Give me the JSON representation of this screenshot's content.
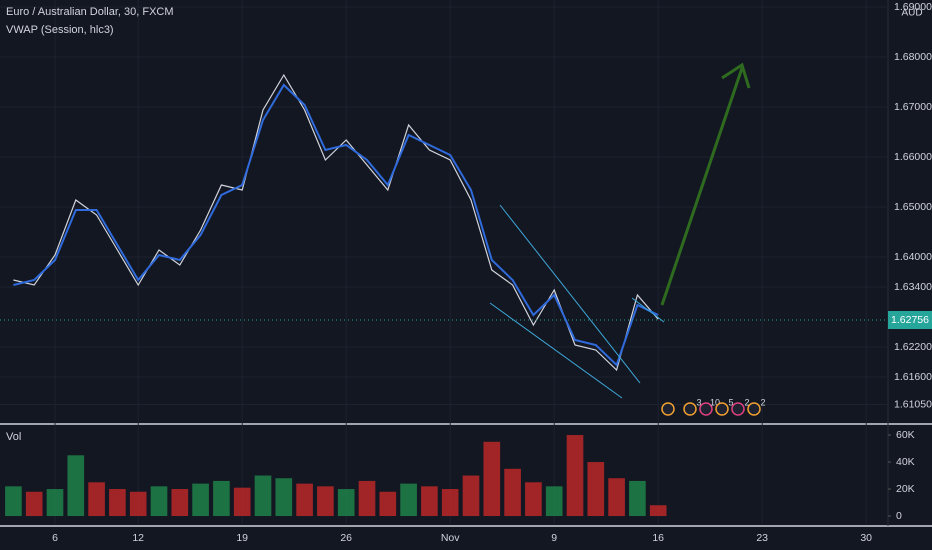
{
  "chart_data": {
    "type": "line",
    "title": "Euro / Australian Dollar, 30, FXCM",
    "currency": "AUD",
    "categories": [
      null,
      null,
      "6",
      null,
      null,
      null,
      "12",
      null,
      null,
      null,
      null,
      "19",
      null,
      null,
      null,
      null,
      "26",
      null,
      null,
      null,
      null,
      "Nov",
      null,
      null,
      null,
      null,
      "9",
      null,
      null,
      null,
      null,
      "16",
      null,
      null,
      null,
      null,
      "23",
      null,
      null,
      null,
      null,
      "30",
      null
    ],
    "series": [
      {
        "color": "#d1d4dc",
        "values": [
          1.6354,
          1.6344,
          1.6404,
          1.6514,
          1.6484,
          1.6414,
          1.6344,
          1.6414,
          1.6384,
          1.6454,
          1.6544,
          1.6534,
          1.6694,
          1.6764,
          1.6694,
          1.6594,
          1.6634,
          1.6584,
          1.6534,
          1.6664,
          1.6614,
          1.6594,
          1.6514,
          1.6374,
          1.6344,
          1.6264,
          1.6334,
          1.6224,
          1.6214,
          1.6174,
          1.6324,
          1.62756,
          null,
          null,
          null,
          null,
          null,
          null,
          null,
          null,
          null,
          null,
          null
        ]
      },
      {
        "name": "VWAP (Session, hlc3)",
        "color": "#2f6bdc",
        "values": [
          1.6344,
          1.6354,
          1.6394,
          1.6494,
          1.6494,
          1.6424,
          1.6354,
          1.6404,
          1.6394,
          1.6444,
          1.6524,
          1.6544,
          1.6674,
          1.6744,
          1.6704,
          1.6614,
          1.6624,
          1.6594,
          1.6544,
          1.6644,
          1.6624,
          1.6604,
          1.6534,
          1.6394,
          1.6354,
          1.6284,
          1.6324,
          1.6234,
          1.6224,
          1.6184,
          1.6304,
          1.6284,
          null,
          null,
          null,
          null,
          null,
          null,
          null,
          null,
          null,
          null,
          null
        ]
      },
      {
        "name": "Vol",
        "axis": "y2",
        "up_color": "#1f8a4c",
        "down_color": "#c62828",
        "values": [
          22000,
          18000,
          20000,
          45000,
          25000,
          20000,
          18000,
          22000,
          20000,
          24000,
          26000,
          21000,
          30000,
          28000,
          24000,
          22000,
          20000,
          26000,
          18000,
          24000,
          22000,
          20000,
          30000,
          55000,
          35000,
          25000,
          22000,
          60000,
          40000,
          28000,
          26000,
          8000,
          null,
          null,
          null,
          null,
          null,
          null,
          null,
          null,
          null,
          null,
          null
        ]
      }
    ],
    "ylim": [
      1.6066,
      1.6914
    ],
    "yticks": [
      {
        "value": 1.69,
        "label": "1.69000"
      },
      {
        "value": 1.68,
        "label": "1.68000"
      },
      {
        "value": 1.67,
        "label": "1.67000"
      },
      {
        "value": 1.66,
        "label": "1.66000"
      },
      {
        "value": 1.65,
        "label": "1.65000"
      },
      {
        "value": 1.64,
        "label": "1.64000"
      },
      {
        "value": 1.634,
        "label": "1.63400"
      },
      {
        "value": 1.622,
        "label": "1.62200"
      },
      {
        "value": 1.616,
        "label": "1.61600"
      },
      {
        "value": 1.6105,
        "label": "1.61050"
      }
    ],
    "y2lim": [
      -5900,
      66700
    ],
    "y2ticks": [
      {
        "value": 60000,
        "label": "60K"
      },
      {
        "value": 40000,
        "label": "40K"
      },
      {
        "value": 20000,
        "label": "20K"
      },
      0
    ],
    "event_labels": [
      "3",
      "10",
      "5",
      "2",
      "2"
    ],
    "grid": true
  }
}
